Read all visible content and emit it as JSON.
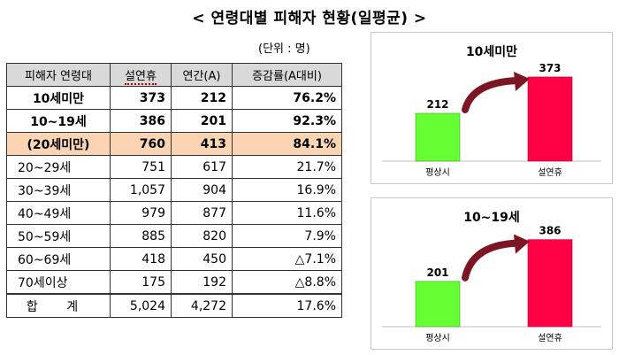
{
  "page": {
    "title": "< 연령대별 피해자 현황(일평균) >",
    "unit_note": "(단위 : 명)"
  },
  "table": {
    "headers": [
      "피해자 연령대",
      "설연휴",
      "연간(A)",
      "증감률(A대비)"
    ],
    "rows": [
      {
        "label": "10세미만",
        "holiday": "373",
        "annual": "212",
        "change": "76.2%",
        "style": "bold"
      },
      {
        "label": "10~19세",
        "holiday": "386",
        "annual": "201",
        "change": "92.3%",
        "style": "bold"
      },
      {
        "label": "(20세미만)",
        "holiday": "760",
        "annual": "413",
        "change": "84.1%",
        "style": "highlight"
      },
      {
        "label": "20~29세",
        "holiday": "751",
        "annual": "617",
        "change": "21.7%",
        "style": "normal"
      },
      {
        "label": "30~39세",
        "holiday": "1,057",
        "annual": "904",
        "change": "16.9%",
        "style": "normal"
      },
      {
        "label": "40~49세",
        "holiday": "979",
        "annual": "877",
        "change": "11.6%",
        "style": "normal"
      },
      {
        "label": "50~59세",
        "holiday": "885",
        "annual": "820",
        "change": "7.9%",
        "style": "normal"
      },
      {
        "label": "60~69세",
        "holiday": "418",
        "annual": "450",
        "change": "△7.1%",
        "style": "normal"
      },
      {
        "label": "70세이상",
        "holiday": "175",
        "annual": "192",
        "change": "△8.8%",
        "style": "normal"
      }
    ],
    "total": {
      "label": "합 계",
      "holiday": "5,024",
      "annual": "4,272",
      "change": "17.6%"
    }
  },
  "colors": {
    "normal_bar": "#66ff33",
    "holiday_bar": "#ff0044",
    "arrow": "#7b1622",
    "highlight_row": "#fbd4b4"
  },
  "chart_data": [
    {
      "type": "bar",
      "title": "10세미만",
      "categories": [
        "평상시",
        "설연휴"
      ],
      "values": [
        212,
        373
      ],
      "ylim": [
        0,
        420
      ],
      "annotation": "arrow from 평상시 bar to 설연휴 bar"
    },
    {
      "type": "bar",
      "title": "10~19세",
      "categories": [
        "평상시",
        "설연휴"
      ],
      "values": [
        201,
        386
      ],
      "ylim": [
        0,
        420
      ],
      "annotation": "arrow from 평상시 bar to 설연휴 bar"
    }
  ]
}
